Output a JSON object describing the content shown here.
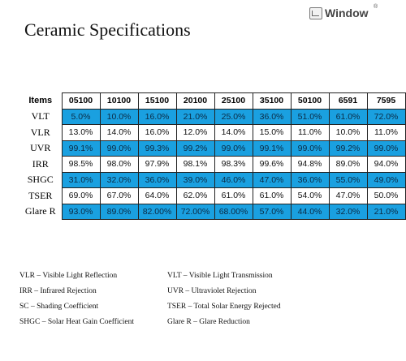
{
  "title": "Ceramic Specifications",
  "logo": {
    "text": "Window",
    "mark": "®"
  },
  "table": {
    "header_label": "Items",
    "columns": [
      "05100",
      "10100",
      "15100",
      "20100",
      "25100",
      "35100",
      "50100",
      "6591",
      "7595"
    ],
    "rows": [
      {
        "label": "VLT",
        "style": "blue",
        "values": [
          "5.0%",
          "10.0%",
          "16.0%",
          "21.0%",
          "25.0%",
          "36.0%",
          "51.0%",
          "61.0%",
          "72.0%"
        ]
      },
      {
        "label": "VLR",
        "style": "white",
        "values": [
          "13.0%",
          "14.0%",
          "16.0%",
          "12.0%",
          "14.0%",
          "15.0%",
          "11.0%",
          "10.0%",
          "11.0%"
        ]
      },
      {
        "label": "UVR",
        "style": "blue",
        "values": [
          "99.1%",
          "99.0%",
          "99.3%",
          "99.2%",
          "99.0%",
          "99.1%",
          "99.0%",
          "99.2%",
          "99.0%"
        ]
      },
      {
        "label": "IRR",
        "style": "white",
        "values": [
          "98.5%",
          "98.0%",
          "97.9%",
          "98.1%",
          "98.3%",
          "99.6%",
          "94.8%",
          "89.0%",
          "94.0%"
        ]
      },
      {
        "label": "SHGC",
        "style": "blue",
        "values": [
          "31.0%",
          "32.0%",
          "36.0%",
          "39.0%",
          "46.0%",
          "47.0%",
          "36.0%",
          "55.0%",
          "49.0%"
        ]
      },
      {
        "label": "TSER",
        "style": "white",
        "values": [
          "69.0%",
          "67.0%",
          "64.0%",
          "62.0%",
          "61.0%",
          "61.0%",
          "54.0%",
          "47.0%",
          "50.0%"
        ]
      },
      {
        "label": "Glare R",
        "style": "blue",
        "values": [
          "93.0%",
          "89.0%",
          "82.00%",
          "72.00%",
          "68.00%",
          "57.0%",
          "44.0%",
          "32.0%",
          "21.0%"
        ]
      }
    ]
  },
  "legend": {
    "left": [
      "VLR – Visible Light Reflection",
      "IRR – Infrared Rejection",
      "SC – Shading Coefficient",
      "SHGC – Solar Heat Gain Coefficient"
    ],
    "right": [
      "VLT – Visible Light Transmission",
      "UVR – Ultraviolet Rejection",
      "TSER – Total Solar Energy Rejected",
      "Glare R – Glare Reduction"
    ]
  }
}
